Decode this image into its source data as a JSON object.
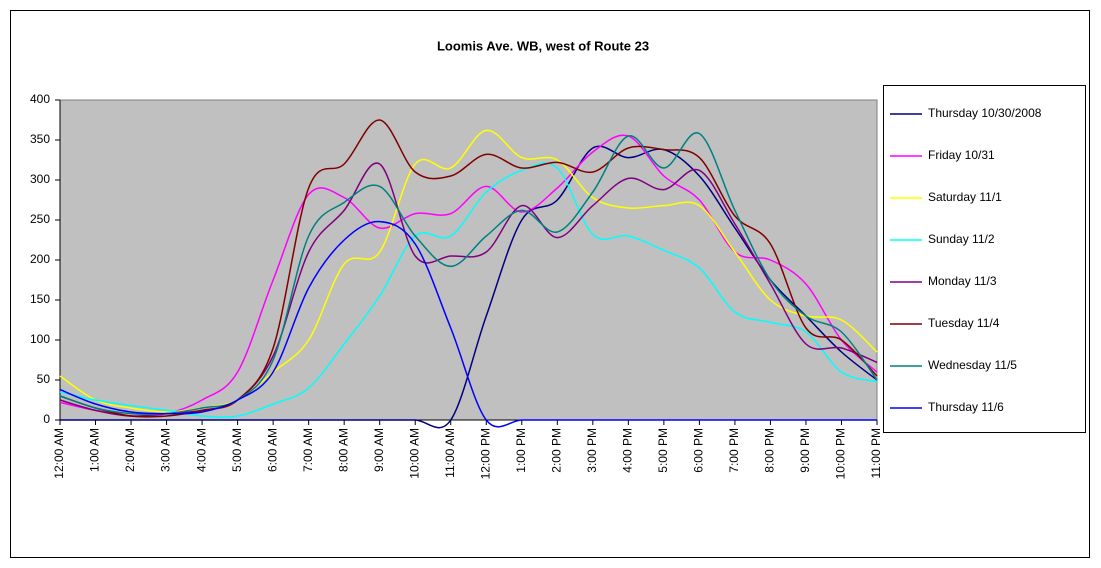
{
  "chart_data": {
    "type": "line",
    "title": "Loomis Ave. WB, west of Route 23",
    "categories": [
      "12:00 AM",
      "1:00 AM",
      "2:00 AM",
      "3:00 AM",
      "4:00 AM",
      "5:00 AM",
      "6:00 AM",
      "7:00 AM",
      "8:00 AM",
      "9:00 AM",
      "10:00 AM",
      "11:00 AM",
      "12:00 PM",
      "1:00 PM",
      "2:00 PM",
      "3:00 PM",
      "4:00 PM",
      "5:00 PM",
      "6:00 PM",
      "7:00 PM",
      "8:00 PM",
      "9:00 PM",
      "10:00 PM",
      "11:00 PM"
    ],
    "series": [
      {
        "name": "Thursday 10/30/2008",
        "color": "#000080",
        "values": [
          0,
          0,
          0,
          0,
          0,
          0,
          0,
          0,
          0,
          0,
          0,
          0,
          130,
          250,
          275,
          340,
          328,
          338,
          305,
          240,
          175,
          130,
          85,
          50
        ]
      },
      {
        "name": "Friday 10/31",
        "color": "#ff00ff",
        "values": [
          22,
          12,
          5,
          8,
          25,
          60,
          175,
          282,
          278,
          240,
          258,
          258,
          292,
          260,
          290,
          335,
          355,
          305,
          275,
          210,
          200,
          170,
          100,
          60
        ]
      },
      {
        "name": "Saturday 11/1",
        "color": "#ffff00",
        "values": [
          55,
          25,
          15,
          10,
          15,
          25,
          60,
          100,
          195,
          210,
          320,
          315,
          362,
          328,
          325,
          278,
          265,
          268,
          268,
          210,
          150,
          130,
          125,
          85
        ]
      },
      {
        "name": "Sunday 11/2",
        "color": "#00ffff",
        "values": [
          35,
          25,
          18,
          12,
          5,
          5,
          20,
          40,
          95,
          155,
          230,
          230,
          285,
          312,
          315,
          232,
          230,
          212,
          190,
          135,
          122,
          110,
          60,
          48
        ]
      },
      {
        "name": "Monday 11/3",
        "color": "#800080",
        "values": [
          25,
          12,
          5,
          8,
          12,
          25,
          80,
          210,
          262,
          320,
          205,
          205,
          210,
          268,
          228,
          268,
          302,
          288,
          312,
          245,
          170,
          95,
          90,
          72
        ]
      },
      {
        "name": "Tuesday 11/4",
        "color": "#800000",
        "values": [
          30,
          15,
          5,
          5,
          12,
          25,
          90,
          290,
          320,
          375,
          310,
          305,
          332,
          315,
          322,
          310,
          340,
          338,
          328,
          255,
          220,
          115,
          100,
          55
        ]
      },
      {
        "name": "Wednesday 11/5",
        "color": "#008080",
        "values": [
          30,
          15,
          8,
          8,
          15,
          25,
          75,
          230,
          272,
          292,
          230,
          192,
          230,
          262,
          235,
          285,
          355,
          315,
          358,
          262,
          175,
          130,
          110,
          50
        ]
      },
      {
        "name": "Thursday 11/6",
        "color": "#0000ff",
        "values": [
          38,
          20,
          10,
          8,
          10,
          25,
          60,
          165,
          225,
          248,
          220,
          115,
          0,
          0,
          0,
          0,
          0,
          0,
          0,
          0,
          0,
          0,
          0,
          0
        ]
      }
    ],
    "ylim": [
      0,
      400
    ],
    "yticks": [
      0,
      50,
      100,
      150,
      200,
      250,
      300,
      350,
      400
    ],
    "smooth": true,
    "legend": "right",
    "plot_background": "#c0c0c0"
  }
}
